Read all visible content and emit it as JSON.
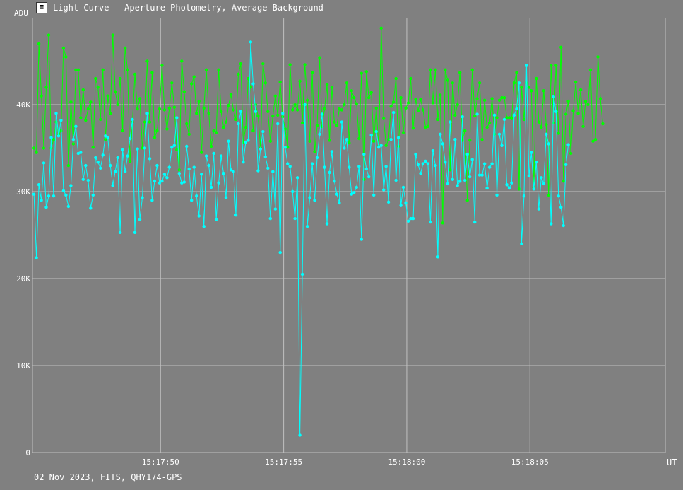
{
  "window": {
    "title": "Light Curve - Aperture Photometry, Average Background",
    "icon": "light-curve-app-icon"
  },
  "footer_text": "02 Nov 2023, FITS, QHY174-GPS",
  "chart_data": {
    "type": "line",
    "ylabel": "ADU",
    "xlabel": "UT",
    "ylim": [
      0,
      50000
    ],
    "xlim": [
      "15:17:44.8",
      "15:18:10.5"
    ],
    "y_ticks": [
      {
        "value": 0,
        "label": "0"
      },
      {
        "value": 10000,
        "label": "10K"
      },
      {
        "value": 20000,
        "label": "20K"
      },
      {
        "value": 30000,
        "label": "30K"
      },
      {
        "value": 40000,
        "label": "40K"
      }
    ],
    "x_ticks": [
      {
        "value": "15:17:50",
        "label": "15:17:50"
      },
      {
        "value": "15:17:55",
        "label": "15:17:55"
      },
      {
        "value": "15:18:00",
        "label": "15:18:00"
      },
      {
        "value": "15:18:05",
        "label": "15:18:05"
      }
    ],
    "grid": true,
    "colors": {
      "background": "#808080",
      "grid": "#c0c0c0",
      "green_series": "#00ff00",
      "cyan_series": "#00ffff"
    },
    "series": [
      {
        "color": "#00ff00",
        "start": "15:17:44.86",
        "step_s": 0.1,
        "values": [
          35000,
          34500,
          47000,
          41000,
          35000,
          42000,
          48000,
          35000,
          36000,
          38000,
          36500,
          37000,
          46500,
          45500,
          33000,
          40300,
          35500,
          44000,
          44000,
          38500,
          41700,
          38200,
          39500,
          40300,
          35100,
          43000,
          42000,
          38300,
          44000,
          36000,
          41000,
          39000,
          48000,
          41500,
          40000,
          43000,
          37000,
          46500,
          44000,
          33500,
          38000,
          43500,
          39500,
          40700,
          35000,
          38000,
          45000,
          38000,
          43700,
          36200,
          37000,
          39500,
          44500,
          39400,
          37200,
          39600,
          42500,
          39700,
          34800,
          32500,
          45000,
          41500,
          37800,
          36600,
          42400,
          43200,
          39000,
          40400,
          34500,
          39600,
          44000,
          39000,
          35200,
          37000,
          36800,
          44000,
          39200,
          37400,
          38000,
          39900,
          41200,
          39400,
          38300,
          43500,
          44700,
          35700,
          37400,
          43000,
          42000,
          37000,
          40000,
          38700,
          35000,
          44700,
          42500,
          39200,
          35800,
          38700,
          41000,
          38800,
          42600,
          38600,
          37200,
          35100,
          44600,
          39400,
          40000,
          39400,
          42700,
          37900,
          44600,
          40500,
          35800,
          43700,
          34600,
          37600,
          45400,
          37500,
          39500,
          42300,
          35900,
          42000,
          38000,
          37600,
          39500,
          39400,
          40000,
          42500,
          35600,
          41600,
          40800,
          40100,
          36100,
          43600,
          31400,
          43800,
          40800,
          41400,
          35800,
          39600,
          35200,
          48800,
          38400,
          35300,
          36000,
          39800,
          40300,
          43000,
          35200,
          40800,
          36800,
          39600,
          40200,
          43000,
          37300,
          40600,
          39300,
          40600,
          39400,
          37400,
          37500,
          44000,
          40200,
          44000,
          38300,
          41100,
          26400,
          44000,
          42800,
          32500,
          42500,
          38800,
          40000,
          43700,
          35900,
          37000,
          29000,
          35900,
          44000,
          38700,
          40700,
          42500,
          36000,
          40500,
          37400,
          37900,
          40700,
          36600,
          38500,
          40500,
          40800,
          40800,
          38500,
          38500,
          38400,
          42500,
          43700,
          30300,
          42000,
          38300,
          42500,
          42000,
          41600,
          30500,
          43000,
          38000,
          37400,
          41600,
          37700,
          29600,
          44500,
          37900,
          44500,
          36700,
          46600,
          31200,
          38900,
          40400,
          34400,
          39300,
          42600,
          39000,
          41700,
          37500,
          40400,
          40000,
          44000,
          35800,
          36000,
          45500,
          40700,
          37800
        ]
      },
      {
        "color": "#00ffff",
        "start": "15:17:44.86",
        "step_s": 0.1,
        "values": [
          29700,
          22400,
          30800,
          29000,
          33300,
          28200,
          29500,
          36200,
          29500,
          39000,
          36400,
          38200,
          30100,
          29600,
          28300,
          30700,
          36000,
          37500,
          34400,
          34500,
          31400,
          33000,
          31300,
          28100,
          29600,
          33900,
          33400,
          32700,
          34200,
          36400,
          36200,
          33000,
          30700,
          32300,
          33900,
          25300,
          34800,
          32300,
          34100,
          36100,
          38300,
          25300,
          34900,
          26800,
          29300,
          35000,
          39000,
          33800,
          29000,
          31200,
          33000,
          31000,
          31200,
          32000,
          31600,
          32800,
          35100,
          35300,
          38500,
          32100,
          31000,
          31100,
          35200,
          32600,
          29000,
          32800,
          29500,
          27200,
          32000,
          26000,
          34100,
          33000,
          30500,
          34400,
          26800,
          31000,
          34100,
          32100,
          29300,
          35800,
          32500,
          32300,
          27300,
          37800,
          39200,
          33400,
          35700,
          35900,
          47200,
          42400,
          39200,
          32400,
          34900,
          36900,
          34000,
          32700,
          26900,
          32300,
          28000,
          37800,
          23000,
          39000,
          35100,
          33200,
          32900,
          30000,
          26900,
          31600,
          2000,
          20500,
          40000,
          26000,
          29300,
          33200,
          29000,
          33900,
          36600,
          38900,
          32800,
          26300,
          32200,
          34600,
          31200,
          29700,
          28700,
          38000,
          35000,
          36000,
          32800,
          29700,
          29900,
          30500,
          32900,
          24500,
          34300,
          32600,
          31700,
          36500,
          29600,
          36900,
          35100,
          35300,
          30200,
          32900,
          28800,
          36000,
          39100,
          31300,
          36200,
          28400,
          30500,
          28700,
          26600,
          26900,
          26900,
          34300,
          33100,
          32100,
          33200,
          33500,
          33200,
          26500,
          34700,
          33000,
          22500,
          36600,
          35500,
          33400,
          30900,
          38000,
          31400,
          36000,
          30700,
          31200,
          38600,
          31300,
          34300,
          31700,
          33700,
          26500,
          38900,
          31900,
          31900,
          33200,
          30400,
          32800,
          33200,
          38800,
          29600,
          36600,
          35300,
          38300,
          30800,
          30400,
          31000,
          38800,
          39500,
          42500,
          24000,
          29500,
          44500,
          31800,
          34500,
          30300,
          33400,
          28000,
          31600,
          30900,
          36600,
          35500,
          26300,
          40900,
          39200,
          29500,
          28200,
          26100,
          33100,
          35400
        ]
      }
    ]
  }
}
